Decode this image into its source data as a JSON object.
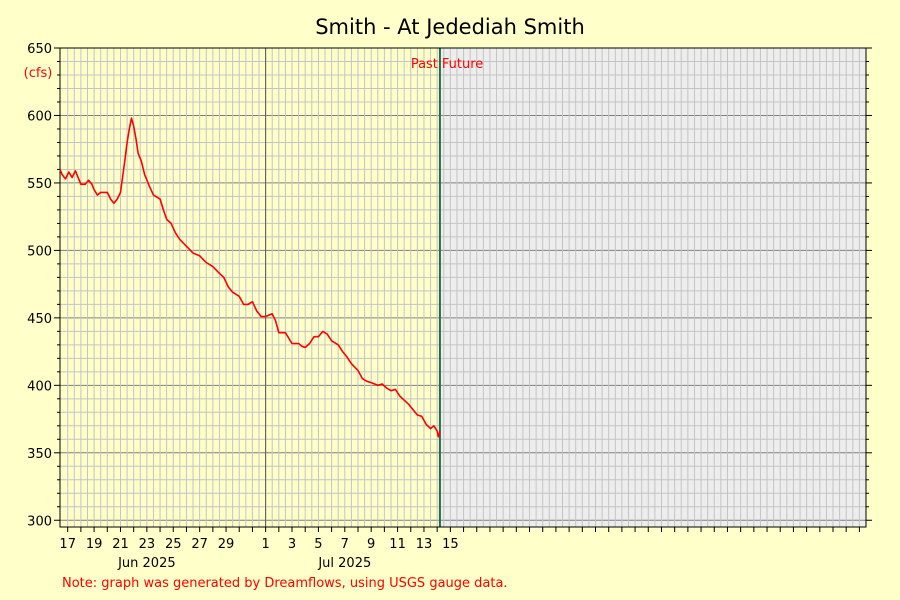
{
  "chart_data": {
    "type": "line",
    "title": "Smith - At Jedediah Smith",
    "ylabel": "(cfs)",
    "ylim": [
      295,
      650
    ],
    "yticks": [
      300,
      350,
      400,
      450,
      500,
      550,
      600,
      650
    ],
    "xlim": [
      "2025-05-16T10:00",
      "2025-07-16T12:00"
    ],
    "x_tick_labels": [
      {
        "date": "2025-05-17",
        "label": "17"
      },
      {
        "date": "2025-05-19",
        "label": "19"
      },
      {
        "date": "2025-05-21",
        "label": "21"
      },
      {
        "date": "2025-05-23",
        "label": "23"
      },
      {
        "date": "2025-05-25",
        "label": "25"
      },
      {
        "date": "2025-05-27",
        "label": "27"
      },
      {
        "date": "2025-05-29",
        "label": "29"
      },
      {
        "date": "2025-06-01",
        "label": "1"
      },
      {
        "date": "2025-06-03",
        "label": "3"
      },
      {
        "date": "2025-06-05",
        "label": "5"
      },
      {
        "date": "2025-06-07",
        "label": "7"
      },
      {
        "date": "2025-06-09",
        "label": "9"
      },
      {
        "date": "2025-06-11",
        "label": "11"
      },
      {
        "date": "2025-06-13",
        "label": "13"
      },
      {
        "date": "2025-06-15",
        "label": "15"
      }
    ],
    "month_labels": [
      {
        "date": "2025-05-23",
        "label": "Jun 2025"
      },
      {
        "date": "2025-06-07",
        "label": "Jul 2025"
      }
    ],
    "month_divider": "2025-06-01",
    "now": "2025-06-14T05:00",
    "past_label": "Past",
    "future_label": "Future",
    "grid": true,
    "series": [
      {
        "color": "#ff0000",
        "points": [
          [
            "2025-05-16T10:00",
            560
          ],
          [
            "2025-05-16T14:00",
            556
          ],
          [
            "2025-05-16T20:00",
            553
          ],
          [
            "2025-05-17T02:00",
            558
          ],
          [
            "2025-05-17T08:00",
            554
          ],
          [
            "2025-05-17T14:00",
            559
          ],
          [
            "2025-05-17T20:00",
            553
          ],
          [
            "2025-05-18T00:00",
            549
          ],
          [
            "2025-05-18T08:00",
            549
          ],
          [
            "2025-05-18T14:00",
            552
          ],
          [
            "2025-05-18T20:00",
            549
          ],
          [
            "2025-05-19T00:00",
            545
          ],
          [
            "2025-05-19T06:00",
            541
          ],
          [
            "2025-05-19T12:00",
            543
          ],
          [
            "2025-05-20T00:00",
            543
          ],
          [
            "2025-05-20T06:00",
            538
          ],
          [
            "2025-05-20T12:00",
            535
          ],
          [
            "2025-05-20T18:00",
            538
          ],
          [
            "2025-05-21T00:00",
            543
          ],
          [
            "2025-05-21T04:00",
            555
          ],
          [
            "2025-05-21T08:00",
            567
          ],
          [
            "2025-05-21T12:00",
            580
          ],
          [
            "2025-05-21T16:00",
            590
          ],
          [
            "2025-05-21T20:00",
            598
          ],
          [
            "2025-05-22T00:00",
            592
          ],
          [
            "2025-05-22T04:00",
            583
          ],
          [
            "2025-05-22T08:00",
            572
          ],
          [
            "2025-05-22T14:00",
            566
          ],
          [
            "2025-05-22T20:00",
            556
          ],
          [
            "2025-05-23T04:00",
            548
          ],
          [
            "2025-05-23T12:00",
            541
          ],
          [
            "2025-05-24T00:00",
            538
          ],
          [
            "2025-05-24T06:00",
            530
          ],
          [
            "2025-05-24T12:00",
            523
          ],
          [
            "2025-05-24T20:00",
            520
          ],
          [
            "2025-05-25T04:00",
            513
          ],
          [
            "2025-05-25T12:00",
            508
          ],
          [
            "2025-05-26T00:00",
            503
          ],
          [
            "2025-05-26T12:00",
            498
          ],
          [
            "2025-05-27T00:00",
            496
          ],
          [
            "2025-05-27T12:00",
            491
          ],
          [
            "2025-05-28T00:00",
            488
          ],
          [
            "2025-05-28T12:00",
            483
          ],
          [
            "2025-05-28T20:00",
            480
          ],
          [
            "2025-05-29T04:00",
            473
          ],
          [
            "2025-05-29T12:00",
            469
          ],
          [
            "2025-05-30T00:00",
            466
          ],
          [
            "2025-05-30T08:00",
            460
          ],
          [
            "2025-05-30T16:00",
            460
          ],
          [
            "2025-05-31T00:00",
            462
          ],
          [
            "2025-05-31T08:00",
            455
          ],
          [
            "2025-05-31T16:00",
            451
          ],
          [
            "2025-06-01T00:00",
            451
          ],
          [
            "2025-06-01T12:00",
            453
          ],
          [
            "2025-06-01T18:00",
            448
          ],
          [
            "2025-06-02T00:00",
            439
          ],
          [
            "2025-06-02T12:00",
            439
          ],
          [
            "2025-06-03T00:00",
            431
          ],
          [
            "2025-06-03T12:00",
            431
          ],
          [
            "2025-06-03T18:00",
            429
          ],
          [
            "2025-06-04T00:00",
            428
          ],
          [
            "2025-06-04T08:00",
            431
          ],
          [
            "2025-06-04T16:00",
            436
          ],
          [
            "2025-06-05T00:00",
            436
          ],
          [
            "2025-06-05T08:00",
            440
          ],
          [
            "2025-06-05T16:00",
            438
          ],
          [
            "2025-06-06T00:00",
            433
          ],
          [
            "2025-06-06T12:00",
            430
          ],
          [
            "2025-06-06T20:00",
            425
          ],
          [
            "2025-06-07T04:00",
            421
          ],
          [
            "2025-06-07T12:00",
            416
          ],
          [
            "2025-06-08T00:00",
            411
          ],
          [
            "2025-06-08T08:00",
            405
          ],
          [
            "2025-06-08T16:00",
            403
          ],
          [
            "2025-06-09T00:00",
            402
          ],
          [
            "2025-06-09T12:00",
            400
          ],
          [
            "2025-06-09T20:00",
            401
          ],
          [
            "2025-06-10T04:00",
            398
          ],
          [
            "2025-06-10T12:00",
            396
          ],
          [
            "2025-06-10T20:00",
            397
          ],
          [
            "2025-06-11T04:00",
            392
          ],
          [
            "2025-06-11T12:00",
            389
          ],
          [
            "2025-06-11T20:00",
            386
          ],
          [
            "2025-06-12T04:00",
            382
          ],
          [
            "2025-06-12T12:00",
            378
          ],
          [
            "2025-06-12T20:00",
            377
          ],
          [
            "2025-06-13T04:00",
            371
          ],
          [
            "2025-06-13T12:00",
            368
          ],
          [
            "2025-06-13T18:00",
            370
          ],
          [
            "2025-06-14T00:00",
            366
          ],
          [
            "2025-06-14T02:00",
            362
          ],
          [
            "2025-06-14T03:00",
            362
          ],
          [
            "2025-06-14T05:00",
            366
          ]
        ]
      }
    ]
  },
  "note": "Note: graph was generated by Dreamflows, using USGS gauge data."
}
